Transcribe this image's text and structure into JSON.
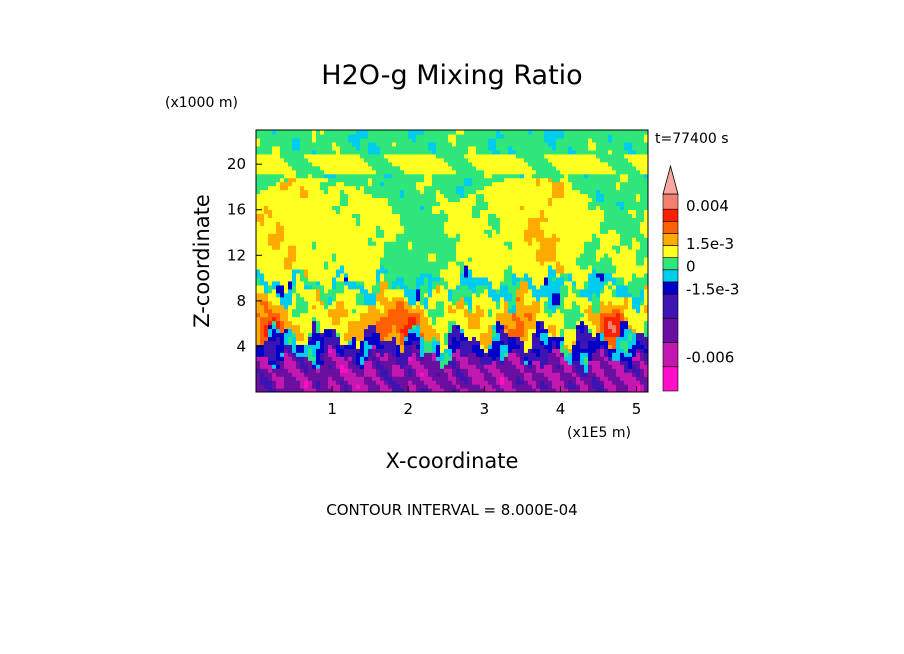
{
  "chart_data": {
    "type": "heatmap",
    "title": "H2O-g Mixing Ratio",
    "xlabel": "X-coordinate",
    "ylabel": "Z-coordinate",
    "x_units": "(x1E5 m)",
    "y_units": "(x1000 m)",
    "time_label": "t=77400 s",
    "xlim": [
      0,
      5.15
    ],
    "ylim": [
      0,
      23
    ],
    "x_ticks": [
      {
        "value": 1,
        "label": "1"
      },
      {
        "value": 2,
        "label": "2"
      },
      {
        "value": 3,
        "label": "3"
      },
      {
        "value": 4,
        "label": "4"
      },
      {
        "value": 5,
        "label": "5"
      }
    ],
    "y_ticks": [
      {
        "value": 4,
        "label": "4"
      },
      {
        "value": 8,
        "label": "8"
      },
      {
        "value": 12,
        "label": "12"
      },
      {
        "value": 16,
        "label": "16"
      },
      {
        "value": 20,
        "label": "20"
      }
    ],
    "colorbar": {
      "min": -0.0082,
      "max": 0.0048,
      "levels": [
        {
          "lo": -0.0082,
          "hi": -0.0066,
          "color": "#ff10c8"
        },
        {
          "lo": -0.0066,
          "hi": -0.005,
          "color": "#c318b0"
        },
        {
          "lo": -0.005,
          "hi": -0.0034,
          "color": "#6a0fa0"
        },
        {
          "lo": -0.0034,
          "hi": -0.0018,
          "color": "#3c14b4"
        },
        {
          "lo": -0.0018,
          "hi": -0.001,
          "color": "#0000c8"
        },
        {
          "lo": -0.001,
          "hi": -0.0002,
          "color": "#00ccee"
        },
        {
          "lo": -0.0002,
          "hi": 0.0006,
          "color": "#2ee67a"
        },
        {
          "lo": 0.0006,
          "hi": 0.0014,
          "color": "#ffff20"
        },
        {
          "lo": 0.0014,
          "hi": 0.0022,
          "color": "#ffaa00"
        },
        {
          "lo": 0.0022,
          "hi": 0.003,
          "color": "#ff6000"
        },
        {
          "lo": 0.003,
          "hi": 0.0038,
          "color": "#ff2000"
        },
        {
          "lo": 0.0038,
          "hi": 0.0048,
          "color": "#f08070"
        }
      ],
      "labels": [
        {
          "value": 0.004,
          "label": "0.004"
        },
        {
          "value": 0.0015,
          "label": "1.5e-3"
        },
        {
          "value": 0,
          "label": "0"
        },
        {
          "value": -0.0015,
          "label": "-1.5e-3"
        },
        {
          "value": -0.006,
          "label": "-0.006"
        }
      ],
      "arrow_color": "#f5a7a0"
    },
    "contour_interval_text": "CONTOUR INTERVAL = 8.000E-04",
    "grid": false
  }
}
